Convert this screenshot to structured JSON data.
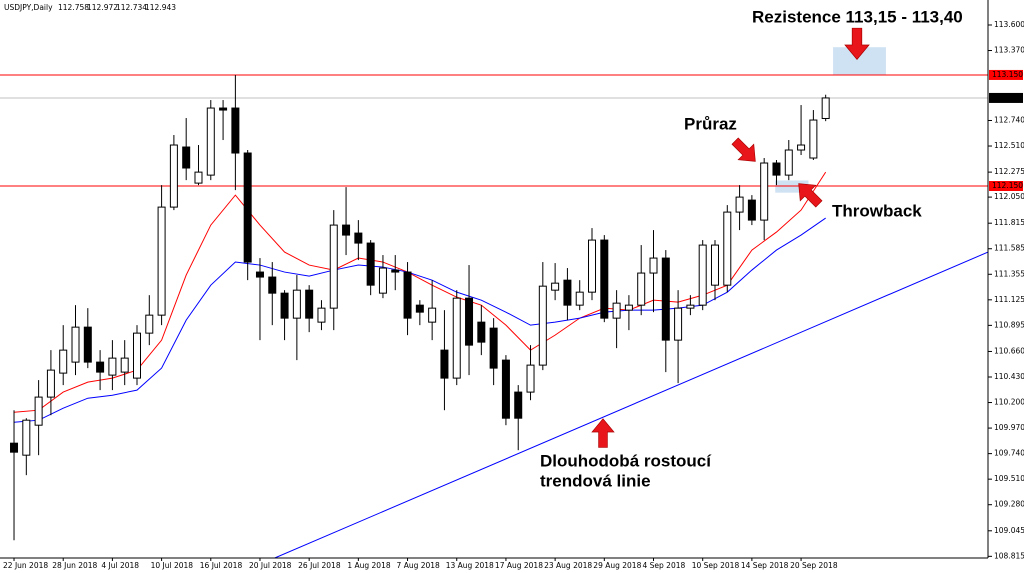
{
  "chart_data": {
    "type": "candlestick",
    "title": "USDJPY,Daily",
    "categories": [
      "22 Jun 2018",
      null,
      null,
      null,
      "28 Jun 2018",
      null,
      null,
      null,
      "4 Jul 2018",
      null,
      null,
      null,
      "10 Jul 2018",
      null,
      null,
      null,
      "16 Jul 2018",
      null,
      null,
      null,
      "20 Jul 2018",
      null,
      null,
      null,
      "26 Jul 2018",
      null,
      null,
      null,
      "1 Aug 2018",
      null,
      null,
      null,
      "7 Aug 2018",
      null,
      null,
      null,
      "13 Aug 2018",
      null,
      null,
      null,
      "17 Aug 2018",
      null,
      null,
      null,
      "23 Aug 2018",
      null,
      null,
      null,
      "29 Aug 2018",
      null,
      null,
      null,
      "4 Sep 2018",
      null,
      null,
      null,
      "10 Sep 2018",
      null,
      null,
      null,
      "14 Sep 2018",
      null,
      null,
      null,
      "20 Sep 2018",
      null,
      null
    ],
    "open": [
      109.834,
      109.726,
      109.996,
      110.249,
      110.465,
      110.564,
      110.879,
      110.564,
      110.447,
      110.474,
      110.42,
      110.825,
      110.987,
      111.96,
      112.501,
      112.176,
      112.248,
      112.852,
      112.852,
      112.447,
      111.375,
      111.33,
      111.185,
      110.96,
      111.212,
      110.924,
      111.05,
      111.798,
      111.726,
      111.636,
      111.185,
      111.393,
      111.375,
      111.077,
      110.924,
      110.672,
      110.42,
      111.14,
      110.924,
      110.87,
      110.582,
      110.294,
      110.294,
      110.537,
      111.212,
      111.302,
      111.077,
      111.194,
      111.663,
      110.96,
      111.032,
      111.077,
      111.366,
      111.501,
      110.762,
      111.05,
      111.077,
      111.257,
      111.257,
      111.915,
      112.023,
      111.843,
      112.357,
      112.248,
      112.474,
      112.402,
      112.758
    ],
    "high": [
      110.131,
      110.059,
      110.402,
      110.672,
      110.897,
      111.077,
      111.05,
      110.672,
      110.762,
      110.762,
      110.897,
      111.167,
      112.158,
      112.609,
      112.762,
      112.519,
      112.924,
      112.924,
      113.149,
      112.474,
      111.501,
      111.465,
      111.212,
      111.348,
      111.257,
      111.122,
      111.933,
      112.14,
      111.843,
      111.663,
      111.528,
      111.528,
      111.465,
      111.122,
      111.302,
      111.032,
      111.212,
      111.438,
      111.077,
      110.96,
      110.627,
      110.357,
      110.717,
      111.465,
      111.456,
      111.411,
      111.302,
      111.771,
      111.708,
      111.212,
      111.167,
      111.618,
      111.753,
      111.573,
      111.212,
      111.167,
      111.663,
      111.663,
      111.978,
      112.158,
      112.068,
      112.402,
      112.384,
      112.564,
      112.879,
      112.834,
      112.972
    ],
    "low": [
      108.96,
      109.546,
      109.726,
      110.086,
      110.357,
      110.447,
      110.51,
      110.312,
      110.312,
      110.357,
      110.357,
      110.717,
      110.897,
      111.933,
      112.203,
      112.158,
      112.203,
      112.564,
      112.113,
      111.302,
      110.762,
      110.897,
      110.762,
      110.582,
      110.834,
      110.852,
      110.852,
      111.528,
      111.483,
      111.167,
      111.14,
      111.212,
      110.807,
      110.897,
      110.762,
      110.131,
      110.357,
      110.447,
      110.627,
      110.357,
      109.996,
      109.771,
      110.221,
      110.492,
      111.122,
      110.942,
      111.032,
      111.122,
      110.924,
      110.69,
      110.852,
      110.987,
      111.014,
      110.474,
      110.375,
      110.987,
      111.032,
      111.122,
      111.194,
      111.753,
      111.798,
      111.663,
      112.158,
      112.203,
      112.429,
      112.384,
      112.734
    ],
    "close": [
      109.753,
      110.041,
      110.249,
      110.492,
      110.672,
      110.879,
      110.564,
      110.474,
      110.6,
      110.6,
      110.825,
      110.987,
      111.96,
      112.519,
      112.312,
      112.275,
      112.852,
      112.834,
      112.447,
      111.465,
      111.33,
      111.185,
      110.96,
      111.212,
      110.96,
      111.05,
      111.798,
      111.708,
      111.636,
      111.257,
      111.411,
      111.375,
      110.96,
      111.014,
      111.05,
      110.42,
      111.14,
      110.717,
      110.744,
      110.51,
      110.059,
      110.059,
      110.537,
      111.248,
      111.275,
      111.077,
      111.194,
      111.663,
      110.96,
      111.095,
      111.077,
      111.366,
      111.501,
      110.762,
      111.05,
      111.077,
      111.618,
      111.618,
      111.915,
      112.05,
      111.843,
      112.357,
      112.248,
      112.474,
      112.519,
      112.744,
      112.943
    ],
    "up_color": "#ffffff",
    "down_color": "#000000",
    "xlim": [
      -1.14,
      79.2
    ],
    "ylim": [
      108.8,
      113.825
    ],
    "yticks": [
      {
        "value": 113.6,
        "label": "113.600"
      },
      {
        "value": 113.37,
        "label": "113.370"
      },
      {
        "value": 112.74,
        "label": "112.740"
      },
      {
        "value": 112.51,
        "label": "112.510"
      },
      112.275,
      {
        "value": 112.05,
        "label": "112.050"
      },
      111.815,
      111.585,
      111.355,
      111.125,
      110.895,
      {
        "value": 110.66,
        "label": "110.660"
      },
      {
        "value": 110.43,
        "label": "110.430"
      },
      {
        "value": 110.2,
        "label": "110.200"
      },
      {
        "value": 109.97,
        "label": "109.970"
      },
      {
        "value": 109.74,
        "label": "109.740"
      },
      {
        "value": 109.51,
        "label": "109.510"
      },
      {
        "value": 109.28,
        "label": "109.280"
      },
      109.045,
      108.815
    ],
    "moving_averages": [
      {
        "color": "#ff0000",
        "x": [
          0,
          2,
          4,
          6,
          8,
          10,
          12,
          14,
          16,
          18,
          20,
          22,
          24,
          26,
          28,
          30,
          32,
          34,
          36,
          38,
          40,
          42,
          44,
          46,
          48,
          50,
          52,
          54,
          56,
          58,
          60,
          62,
          64,
          66
        ],
        "values": [
          110.113,
          110.131,
          110.294,
          110.384,
          110.42,
          110.492,
          110.762,
          111.348,
          111.798,
          112.068,
          111.798,
          111.555,
          111.438,
          111.393,
          111.501,
          111.465,
          111.375,
          111.257,
          111.149,
          111.077,
          110.897,
          110.672,
          110.807,
          110.96,
          111.05,
          111.032,
          111.122,
          111.104,
          111.167,
          111.257,
          111.573,
          111.735,
          111.933,
          112.275
        ]
      },
      {
        "color": "#0000ff",
        "x": [
          0,
          2,
          4,
          6,
          8,
          10,
          12,
          14,
          16,
          18,
          20,
          22,
          24,
          26,
          28,
          30,
          32,
          34,
          36,
          38,
          40,
          42,
          44,
          46,
          48,
          50,
          52,
          54,
          56,
          58,
          60,
          62,
          64,
          66
        ],
        "values": [
          110.023,
          110.041,
          110.149,
          110.239,
          110.266,
          110.312,
          110.51,
          110.942,
          111.257,
          111.465,
          111.438,
          111.375,
          111.339,
          111.393,
          111.438,
          111.42,
          111.375,
          111.302,
          111.194,
          111.122,
          111.014,
          110.897,
          110.924,
          110.96,
          111.014,
          111.032,
          111.032,
          111.05,
          111.077,
          111.194,
          111.393,
          111.573,
          111.708,
          111.861
        ]
      }
    ],
    "levels": [
      {
        "value": 113.15,
        "label": "113.150",
        "color": "#ff0000",
        "label_background": "#ff0000"
      },
      {
        "value": 112.943,
        "label": "112.943",
        "color": "#c0c0c0",
        "label_background": "#000000"
      },
      {
        "value": 112.15,
        "label": "112.150",
        "color": "#ff0000",
        "label_background": "#ff0000"
      }
    ],
    "trendline": {
      "color": "#0000ff",
      "x": [
        21.2,
        79.2
      ],
      "y": [
        108.8,
        111.555
      ]
    },
    "zones": [
      {
        "color": "#cfe2f3",
        "x": [
          66.6,
          70.9
        ],
        "y": [
          113.15,
          113.4
        ]
      },
      {
        "color": "#cfe2f3",
        "x": [
          61.9,
          64.6
        ],
        "y": [
          112.09,
          112.2
        ]
      }
    ],
    "annotations": [
      "Rezistence 113,15 - 113,40",
      "Průraz",
      "Throwback",
      "Dlouhodobá rostoucí",
      "trendová linie"
    ]
  }
}
